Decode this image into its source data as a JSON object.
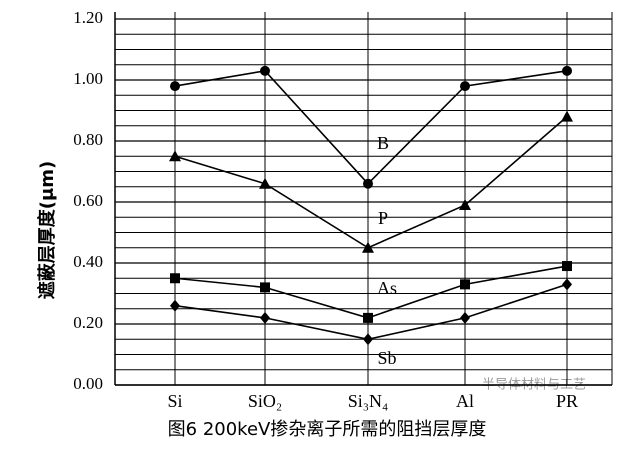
{
  "chart_data": {
    "type": "line",
    "caption": "图6 200keV掺杂离子所需的阻挡层厚度",
    "y_label": "遮蔽层厚度(μm)",
    "watermark": "半导体材料与工艺",
    "categories": [
      "Si",
      "SiO₂",
      "Si₃N₄",
      "Al",
      "PR"
    ],
    "series": [
      {
        "name": "B",
        "color": "#000000",
        "marker": "circle",
        "values": [
          0.98,
          1.03,
          0.66,
          0.98,
          1.03
        ]
      },
      {
        "name": "P",
        "color": "#000000",
        "marker": "triangle",
        "values": [
          0.75,
          0.66,
          0.45,
          0.59,
          0.88
        ]
      },
      {
        "name": "As",
        "color": "#000000",
        "marker": "square",
        "values": [
          0.35,
          0.32,
          0.22,
          0.33,
          0.39
        ]
      },
      {
        "name": "Sb",
        "color": "#000000",
        "marker": "diamond",
        "values": [
          0.26,
          0.22,
          0.15,
          0.22,
          0.33
        ]
      }
    ],
    "ylim": [
      0,
      1.2
    ],
    "yticks": [
      {
        "value": 0,
        "label": "0.00"
      },
      {
        "value": 0.2,
        "label": "0.20"
      },
      {
        "value": 0.4,
        "label": "0.40"
      },
      {
        "value": 0.6,
        "label": "0.60"
      },
      {
        "value": 0.8,
        "label": "0.80"
      },
      {
        "value": 1.0,
        "label": "1.00"
      },
      {
        "value": 1.2,
        "label": "1.20"
      }
    ],
    "minor_yticks": [
      0.05,
      0.1,
      0.15,
      0.25,
      0.3,
      0.35,
      0.45,
      0.5,
      0.55,
      0.65,
      0.7,
      0.75,
      0.85,
      0.9,
      0.95,
      1.05,
      1.1,
      1.15
    ],
    "grid": true
  }
}
